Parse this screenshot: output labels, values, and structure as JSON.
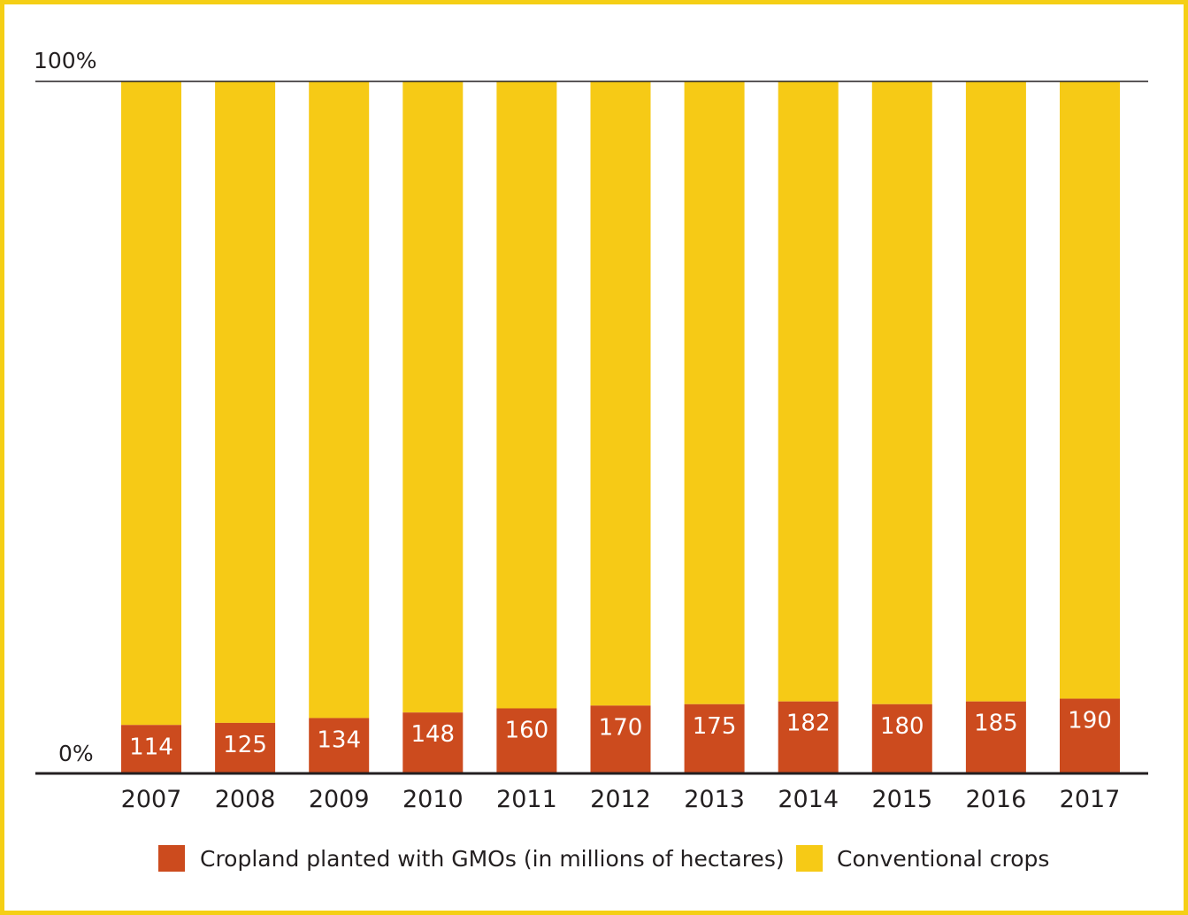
{
  "chart_data": {
    "type": "bar",
    "stacked": true,
    "normalized": true,
    "categories": [
      "2007",
      "2008",
      "2009",
      "2010",
      "2011",
      "2012",
      "2013",
      "2014",
      "2015",
      "2016",
      "2017"
    ],
    "series": [
      {
        "name": "Cropland planted with GMOs (in millions of hectares)",
        "values": [
          114,
          125,
          134,
          148,
          160,
          170,
          175,
          182,
          180,
          185,
          190
        ],
        "color": "#cc4b1e"
      },
      {
        "name": "Conventional crops",
        "color": "#f6ca16"
      }
    ],
    "gmo_share_percent": [
      7,
      7.3,
      8,
      8.8,
      9.4,
      9.8,
      10,
      10.4,
      10,
      10.4,
      10.8
    ],
    "y_ticks": [
      "0%",
      "100%"
    ],
    "ylim": [
      0,
      100
    ],
    "grid": false,
    "legend_position": "bottom",
    "frame_color": "#f5cf15"
  }
}
